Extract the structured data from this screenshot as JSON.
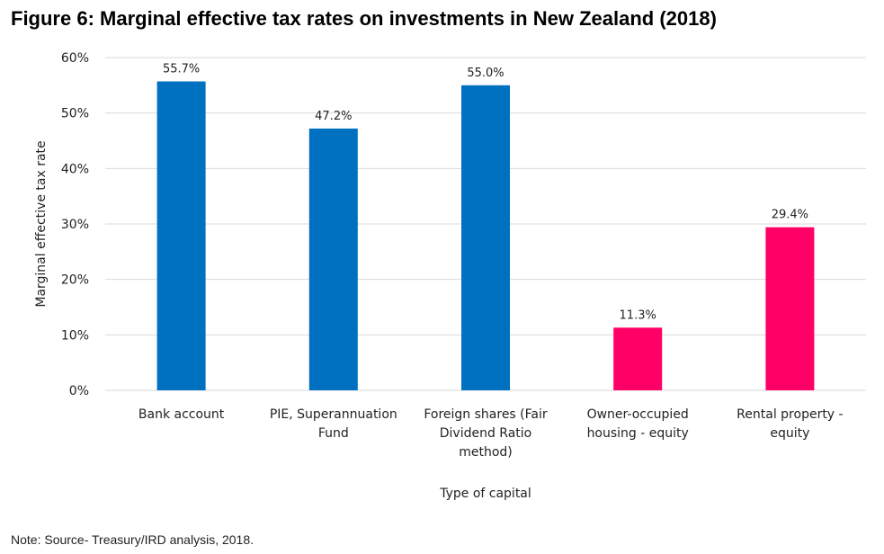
{
  "figure_title": "Figure 6: Marginal effective tax rates on investments in New Zealand (2018)",
  "note": "Note: Source- Treasury/IRD analysis, 2018.",
  "chart_data": {
    "type": "bar",
    "title": "",
    "xlabel": "Type of capital",
    "ylabel": "Marginal effective tax rate",
    "ylim": [
      0,
      60
    ],
    "yticks": [
      0,
      10,
      20,
      30,
      40,
      50,
      60
    ],
    "ytick_labels": [
      "0%",
      "10%",
      "20%",
      "30%",
      "40%",
      "50%",
      "60%"
    ],
    "unit": "%",
    "grid": true,
    "categories": [
      [
        "Bank account"
      ],
      [
        "PIE, Superannuation",
        "Fund"
      ],
      [
        "Foreign shares (Fair",
        "Dividend Ratio",
        "method)"
      ],
      [
        "Owner-occupied",
        "housing - equity"
      ],
      [
        "Rental property -",
        "equity"
      ]
    ],
    "values": [
      55.7,
      47.2,
      55.0,
      11.3,
      29.4
    ],
    "value_labels": [
      "55.7%",
      "47.2%",
      "55.0%",
      "11.3%",
      "29.4%"
    ],
    "colors": [
      "#0070c0",
      "#0070c0",
      "#0070c0",
      "#ff0066",
      "#ff0066"
    ],
    "grid_color": "#d9d9d9"
  }
}
